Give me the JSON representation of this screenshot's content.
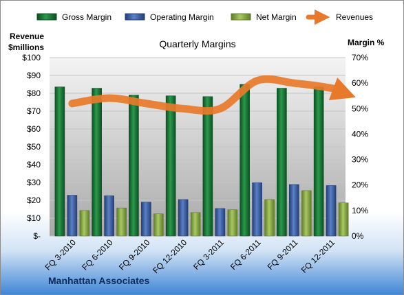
{
  "chart_data": {
    "type": "bar",
    "title": "Quarterly Margins",
    "company": "Manhattan Associates",
    "left_axis_title_line1": "Revenue",
    "left_axis_title_line2": "$millions",
    "right_axis_title": "Margin %",
    "categories": [
      "FQ 3-2010",
      "FQ 6-2010",
      "FQ 9-2010",
      "FQ 12-2010",
      "FQ 3-2011",
      "FQ 6-2011",
      "FQ 9-2011",
      "FQ 12-2011"
    ],
    "left_ticks": [
      "$-",
      "$10",
      "$20",
      "$30",
      "$40",
      "$50",
      "$60",
      "$70",
      "$80",
      "$90",
      "$100"
    ],
    "right_ticks": [
      "0%",
      "10%",
      "20%",
      "30%",
      "40%",
      "50%",
      "60%",
      "70%"
    ],
    "ylim_left": [
      0,
      100
    ],
    "ylim_right": [
      0,
      70
    ],
    "grid": true,
    "legend_position": "top",
    "series": [
      {
        "name": "Gross Margin",
        "axis": "right",
        "kind": "bar",
        "color": "#1e7a3c",
        "values": [
          58.5,
          58.0,
          55.3,
          55.0,
          54.7,
          59.5,
          58.0,
          58.5
        ]
      },
      {
        "name": "Operating Margin",
        "axis": "right",
        "kind": "bar",
        "color": "#3d61a8",
        "values": [
          16.0,
          15.8,
          13.3,
          14.3,
          10.8,
          20.9,
          20.2,
          19.8
        ]
      },
      {
        "name": "Net Margin",
        "axis": "right",
        "kind": "bar",
        "color": "#8db04a",
        "values": [
          10.0,
          11.0,
          8.7,
          9.2,
          10.3,
          14.3,
          17.8,
          13.0
        ]
      },
      {
        "name": "Revenues",
        "axis": "left",
        "kind": "line",
        "color": "#e8792a",
        "values": [
          74.3,
          77.3,
          74.3,
          71.4,
          71.4,
          87.1,
          85.7,
          82.9
        ]
      }
    ]
  }
}
